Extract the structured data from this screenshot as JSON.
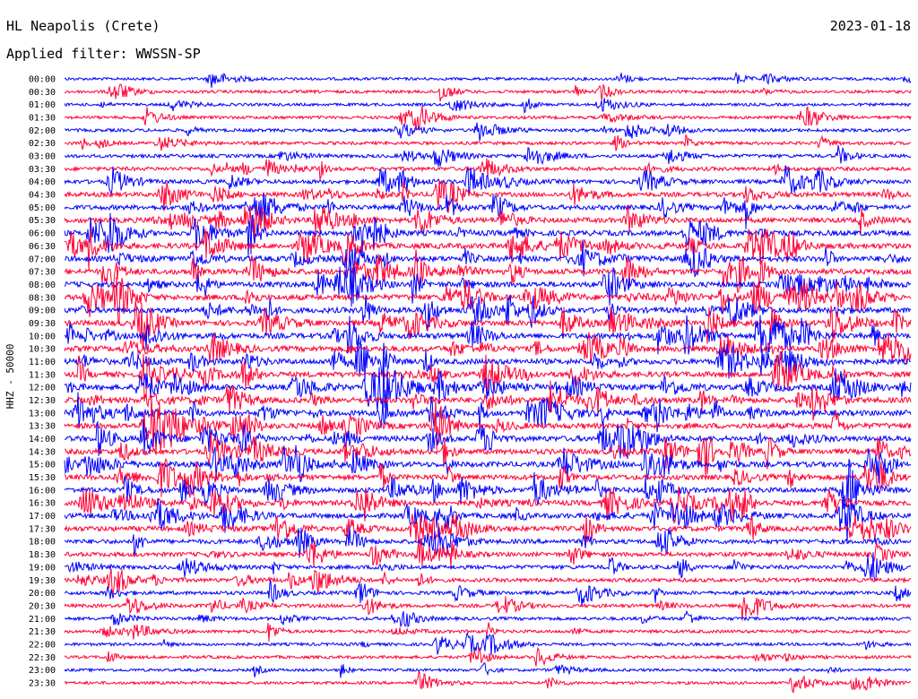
{
  "header": {
    "station": "HL Neapolis (Crete)",
    "date": "2023-01-18",
    "filter": "Applied filter: WWSSN-SP"
  },
  "chart_data": {
    "type": "line",
    "subtype": "helicorder",
    "ylabel": "HHZ - 50000",
    "row_labels": [
      "00:00",
      "00:30",
      "01:00",
      "01:30",
      "02:00",
      "02:30",
      "03:00",
      "03:30",
      "04:00",
      "04:30",
      "05:00",
      "05:30",
      "06:00",
      "06:30",
      "07:00",
      "07:30",
      "08:00",
      "08:30",
      "09:00",
      "09:30",
      "10:00",
      "10:30",
      "11:00",
      "11:30",
      "12:00",
      "12:30",
      "13:00",
      "13:30",
      "14:00",
      "14:30",
      "15:00",
      "15:30",
      "16:00",
      "16:30",
      "17:00",
      "17:30",
      "18:00",
      "18:30",
      "19:00",
      "19:30",
      "20:00",
      "20:30",
      "21:00",
      "21:30",
      "22:00",
      "22:30",
      "23:00",
      "23:30"
    ],
    "activity": [
      0.2,
      0.25,
      0.2,
      0.25,
      0.3,
      0.3,
      0.4,
      0.5,
      0.6,
      0.7,
      0.8,
      0.9,
      0.95,
      1.0,
      1.0,
      1.0,
      1.0,
      1.0,
      1.0,
      1.0,
      1.0,
      1.0,
      1.0,
      1.0,
      1.0,
      1.0,
      1.0,
      1.0,
      1.0,
      0.95,
      0.95,
      0.9,
      0.9,
      0.9,
      0.9,
      0.85,
      0.7,
      0.65,
      0.55,
      0.5,
      0.45,
      0.4,
      0.35,
      0.3,
      0.25,
      0.25,
      0.2,
      0.2
    ],
    "colors": {
      "even": "#0000ff",
      "odd": "#ff0033"
    },
    "grid": false
  }
}
